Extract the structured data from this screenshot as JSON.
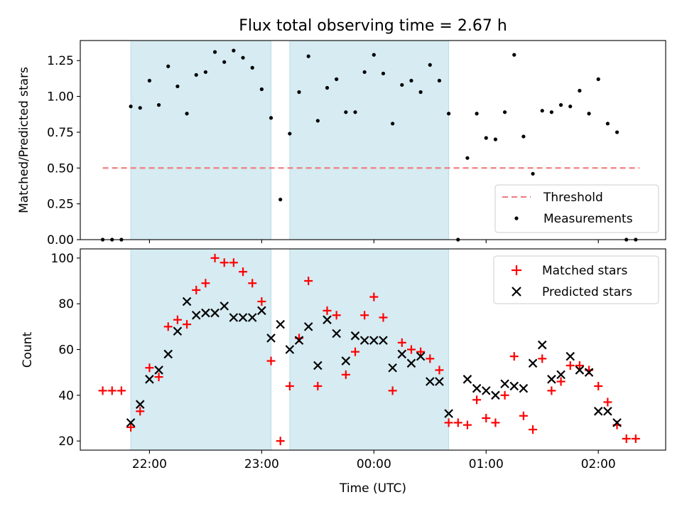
{
  "chart_data": [
    {
      "type": "scatter",
      "title": "Flux total observing time = 2.67 h",
      "ylabel": "Matched/Predicted stars",
      "xlabel": "",
      "ylim": [
        0,
        1.39
      ],
      "yticks": [
        0.0,
        0.25,
        0.5,
        0.75,
        1.0,
        1.25
      ],
      "ytick_labels": [
        "0.00",
        "0.25",
        "0.50",
        "0.75",
        "1.00",
        "1.25"
      ],
      "x_unit_note": "minutes from 00:00 UTC",
      "shaded_intervals": [
        [
          -130,
          -55
        ],
        [
          -45,
          40
        ]
      ],
      "threshold": {
        "name": "Threshold",
        "y": 0.5,
        "x_range": [
          -145,
          142
        ],
        "color": "#f08080"
      },
      "series": [
        {
          "name": "Measurements",
          "color": "#000000",
          "x": [
            -145,
            -140,
            -135,
            -130,
            -125,
            -120,
            -115,
            -110,
            -105,
            -100,
            -95,
            -90,
            -85,
            -80,
            -75,
            -70,
            -65,
            -60,
            -55,
            -50,
            -45,
            -40,
            -35,
            -30,
            -25,
            -20,
            -15,
            -10,
            -5,
            0,
            5,
            10,
            15,
            20,
            25,
            30,
            35,
            40,
            45,
            50,
            55,
            60,
            65,
            70,
            75,
            80,
            85,
            90,
            95,
            100,
            105,
            110,
            115,
            120,
            125,
            130,
            135,
            140
          ],
          "y": [
            0.0,
            0.0,
            0.0,
            0.93,
            0.92,
            1.11,
            0.94,
            1.21,
            1.07,
            0.88,
            1.15,
            1.17,
            1.31,
            1.24,
            1.32,
            1.27,
            1.2,
            1.05,
            0.85,
            0.28,
            0.74,
            1.03,
            1.28,
            0.83,
            1.06,
            1.12,
            0.89,
            0.89,
            1.17,
            1.29,
            1.16,
            0.81,
            1.08,
            1.11,
            1.03,
            1.22,
            1.11,
            0.88,
            0.0,
            0.57,
            0.88,
            0.71,
            0.7,
            0.89,
            1.29,
            0.72,
            0.46,
            0.9,
            0.89,
            0.94,
            0.93,
            1.04,
            0.88,
            1.12,
            0.81,
            0.75,
            0.0,
            0.0
          ]
        }
      ],
      "legend": {
        "placement": "bottom-right",
        "entries": [
          "Threshold",
          "Measurements"
        ]
      }
    },
    {
      "type": "scatter",
      "title": "",
      "ylabel": "Count",
      "xlabel": "Time (UTC)",
      "ylim": [
        16,
        104
      ],
      "yticks": [
        20,
        40,
        60,
        80,
        100
      ],
      "ytick_labels": [
        "20",
        "40",
        "60",
        "80",
        "100"
      ],
      "xlim": [
        -157,
        156
      ],
      "xticks": [
        -120,
        -60,
        0,
        60,
        120
      ],
      "xtick_labels": [
        "22:00",
        "23:00",
        "00:00",
        "01:00",
        "02:00"
      ],
      "shaded_intervals": [
        [
          -130,
          -55
        ],
        [
          -45,
          40
        ]
      ],
      "series": [
        {
          "name": "Matched stars",
          "marker": "plus",
          "color": "#ff0000",
          "x": [
            -145,
            -140,
            -135,
            -130,
            -125,
            -120,
            -115,
            -110,
            -105,
            -100,
            -95,
            -90,
            -85,
            -80,
            -75,
            -70,
            -65,
            -60,
            -55,
            -50,
            -45,
            -40,
            -35,
            -30,
            -25,
            -20,
            -15,
            -10,
            -5,
            0,
            5,
            10,
            15,
            20,
            25,
            30,
            35,
            40,
            45,
            50,
            55,
            60,
            65,
            70,
            75,
            80,
            85,
            90,
            95,
            100,
            105,
            110,
            115,
            120,
            125,
            130,
            135,
            140
          ],
          "y": [
            42,
            42,
            42,
            26,
            33,
            52,
            48,
            70,
            73,
            71,
            86,
            89,
            100,
            98,
            98,
            94,
            89,
            81,
            55,
            20,
            44,
            65,
            90,
            44,
            77,
            75,
            49,
            59,
            75,
            83,
            74,
            42,
            63,
            60,
            59,
            56,
            51,
            28,
            28,
            27,
            38,
            30,
            28,
            40,
            57,
            31,
            25,
            56,
            42,
            46,
            53,
            53,
            51,
            44,
            37,
            27,
            21,
            21
          ]
        },
        {
          "name": "Predicted stars",
          "marker": "x",
          "color": "#000000",
          "x": [
            -130,
            -125,
            -120,
            -115,
            -110,
            -105,
            -100,
            -95,
            -90,
            -85,
            -80,
            -75,
            -70,
            -65,
            -60,
            -55,
            -50,
            -45,
            -40,
            -35,
            -30,
            -25,
            -20,
            -15,
            -10,
            -5,
            0,
            5,
            10,
            15,
            20,
            25,
            30,
            35,
            40,
            50,
            55,
            60,
            65,
            70,
            75,
            80,
            85,
            90,
            95,
            100,
            105,
            110,
            115,
            120,
            125,
            130
          ],
          "y": [
            28,
            36,
            47,
            51,
            58,
            68,
            81,
            75,
            76,
            76,
            79,
            74,
            74,
            74,
            77,
            65,
            71,
            60,
            64,
            70,
            53,
            73,
            67,
            55,
            66,
            64,
            64,
            64,
            52,
            58,
            54,
            57,
            46,
            46,
            32,
            47,
            43,
            42,
            40,
            45,
            44,
            43,
            54,
            62,
            47,
            49,
            57,
            51,
            50,
            33,
            33,
            28
          ]
        }
      ],
      "legend": {
        "placement": "top-right",
        "entries": [
          "Matched stars",
          "Predicted stars"
        ]
      }
    }
  ]
}
